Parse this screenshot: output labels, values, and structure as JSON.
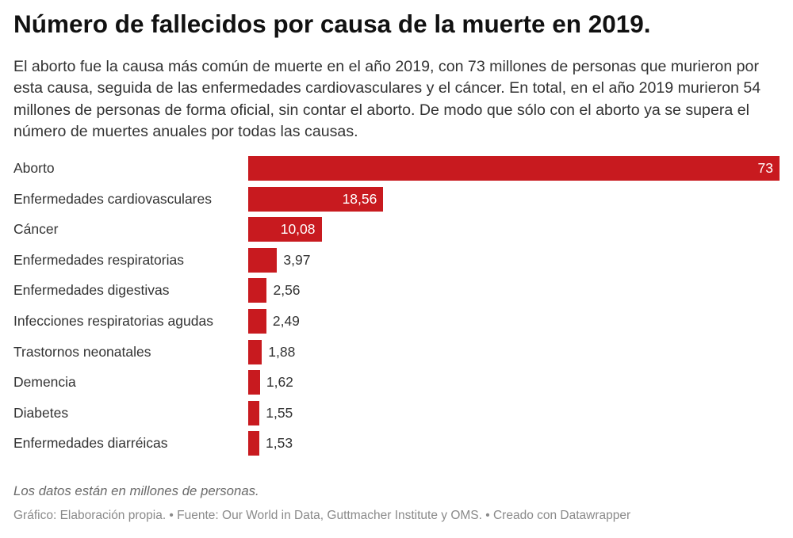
{
  "title": "Número de fallecidos por causa de la muerte en 2019.",
  "subtitle": "El aborto fue la causa más común de muerte en el año 2019, con 73 millones de personas que murieron por esta causa, seguida de las enfermedades cardiovasculares y el cáncer. En total, en el año 2019 murieron 54 millones de personas de forma oficial, sin contar el aborto. De modo que sólo con el aborto ya se supera el número de muertes anuales por todas las causas.",
  "notes": "Los datos están en millones de personas.",
  "footer": "Gráfico: Elaboración propia. • Fuente: Our World in Data, Guttmacher Institute y OMS. • Creado con Datawrapper",
  "colors": {
    "bar": "#c81a1f"
  },
  "chart_data": {
    "type": "bar",
    "orientation": "horizontal",
    "categories": [
      "Aborto",
      "Enfermedades cardiovasculares",
      "Cáncer",
      "Enfermedades respiratorias",
      "Enfermedades digestivas",
      "Infecciones respiratorias agudas",
      "Trastornos neonatales",
      "Demencia",
      "Diabetes",
      "Enfermedades diarréicas"
    ],
    "values": [
      73,
      18.56,
      10.08,
      3.97,
      2.56,
      2.49,
      1.88,
      1.62,
      1.55,
      1.53
    ],
    "value_labels": [
      "73",
      "18,56",
      "10,08",
      "3,97",
      "2,56",
      "2,49",
      "1,88",
      "1,62",
      "1,55",
      "1,53"
    ],
    "xlim": [
      0,
      73
    ],
    "grid": false
  }
}
